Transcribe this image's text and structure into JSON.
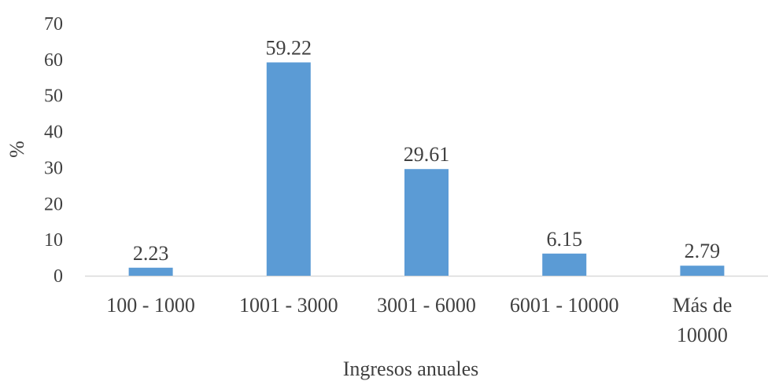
{
  "chart_data": {
    "type": "bar",
    "categories": [
      "100 - 1000",
      "1001 - 3000",
      "3001 - 6000",
      "6001 - 10000",
      "Más de 10000"
    ],
    "category_lines": [
      [
        "100 - 1000"
      ],
      [
        "1001 - 3000"
      ],
      [
        "3001 - 6000"
      ],
      [
        "6001 - 10000"
      ],
      [
        "Más de",
        "10000"
      ]
    ],
    "values": [
      2.23,
      59.22,
      29.61,
      6.15,
      2.79
    ],
    "data_labels": [
      "2.23",
      "59.22",
      "29.61",
      "6.15",
      "2.79"
    ],
    "xlabel": "Ingresos anuales",
    "ylabel": "%",
    "ylim": [
      0,
      70
    ],
    "yticks": [
      0,
      10,
      20,
      30,
      40,
      50,
      60,
      70
    ],
    "grid": false,
    "legend": "none",
    "bar_color": "#5B9BD5",
    "axis_line_color": "#D9D9D9"
  }
}
